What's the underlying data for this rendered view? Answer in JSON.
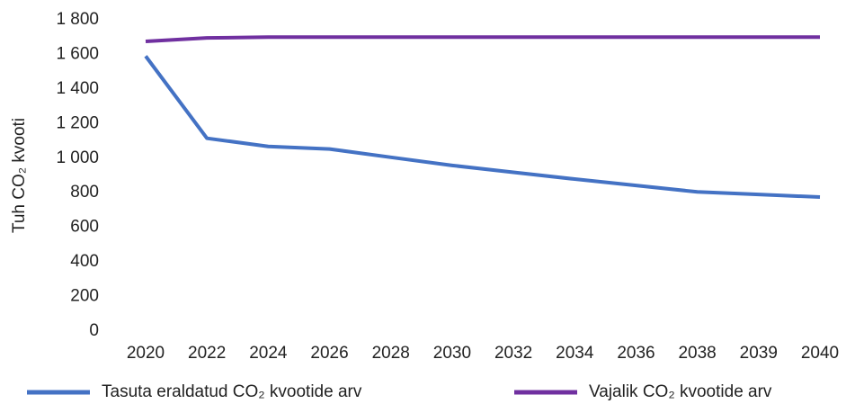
{
  "chart_data": {
    "type": "line",
    "y_label": "Tuh CO₂ kvooti",
    "categories": [
      "2020",
      "2022",
      "2024",
      "2026",
      "2028",
      "2030",
      "2032",
      "2034",
      "2036",
      "2038",
      "2039",
      "2040"
    ],
    "series": [
      {
        "name": "Tasuta eraldatud CO₂ kvootide arv",
        "color": "#4472c4",
        "values": [
          1590,
          1115,
          1068,
          1053,
          1005,
          958,
          918,
          879,
          842,
          805,
          790,
          775
        ]
      },
      {
        "name": "Vajalik CO₂ kvootide arv",
        "color": "#7030a0",
        "values": [
          1675,
          1695,
          1700,
          1700,
          1700,
          1700,
          1700,
          1700,
          1700,
          1700,
          1700,
          1700
        ]
      }
    ],
    "ylim": [
      0,
      1800
    ],
    "yticks": [
      0,
      200,
      400,
      600,
      800,
      {
        "value": 1000,
        "label": "1 000"
      },
      {
        "value": 1200,
        "label": "1 200"
      },
      {
        "value": 1400,
        "label": "1 400"
      },
      {
        "value": 1600,
        "label": "1 600"
      },
      {
        "value": 1800,
        "label": "1 800"
      }
    ],
    "grid": false
  }
}
